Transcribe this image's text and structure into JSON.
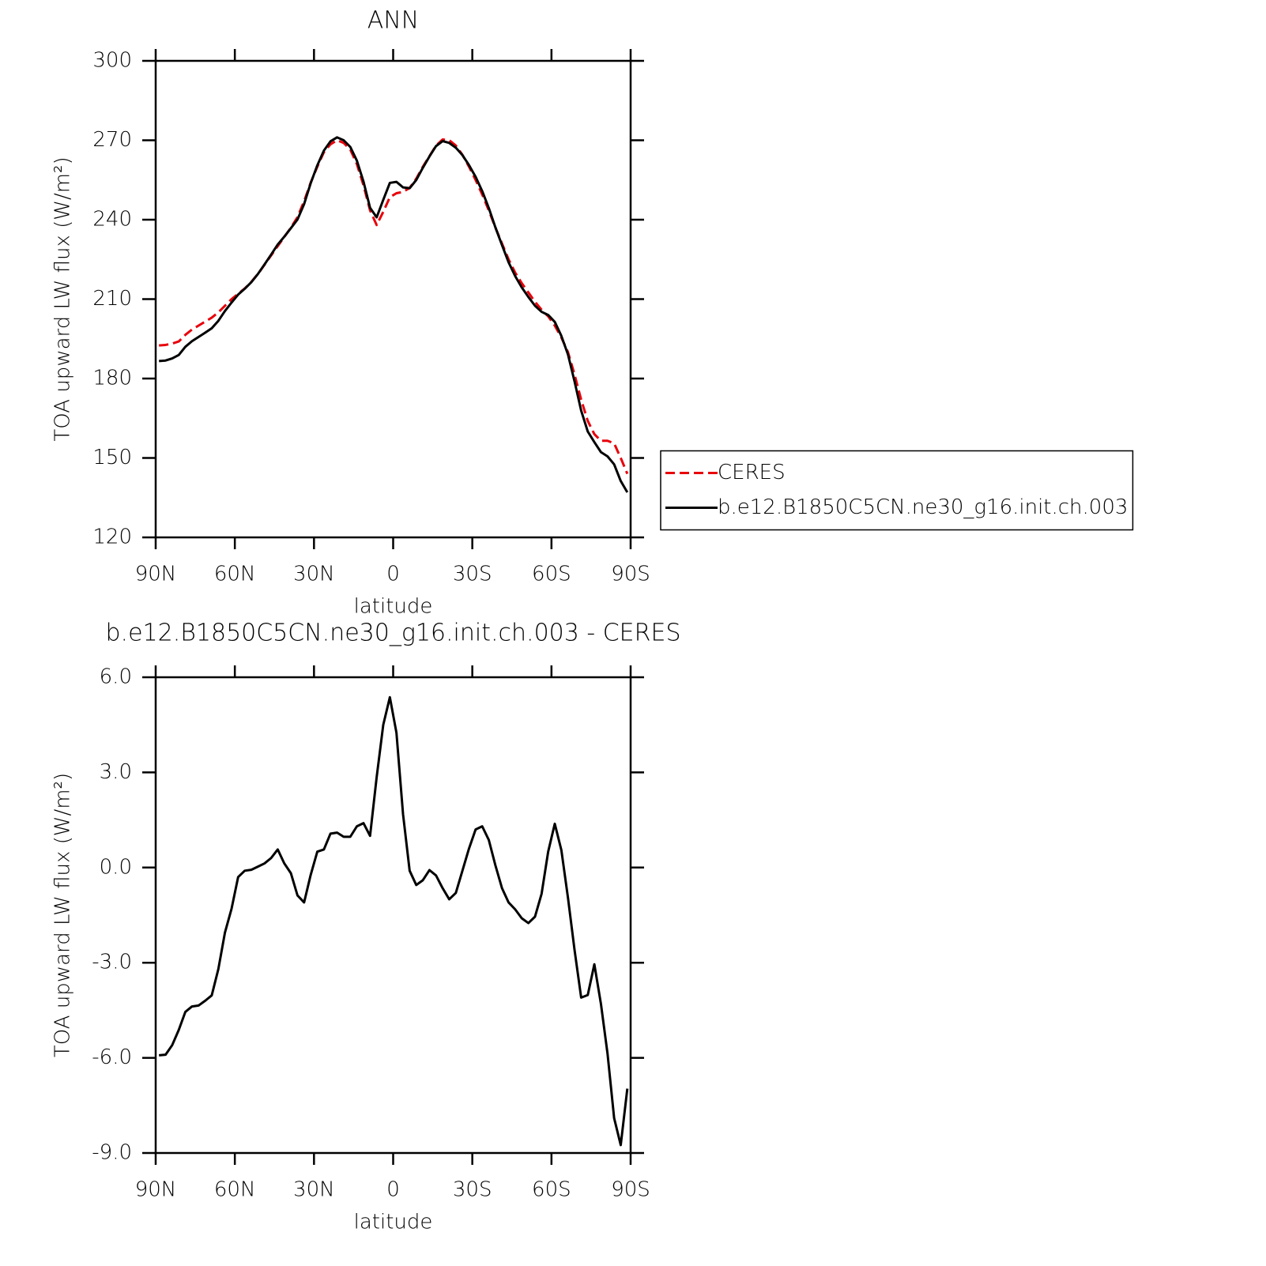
{
  "chart_data": [
    {
      "type": "line",
      "title": "ANN",
      "xlabel": "latitude",
      "ylabel": "TOA upward LW flux (W/m²)",
      "x": [
        88.75,
        86.25,
        83.75,
        81.25,
        78.75,
        76.25,
        73.75,
        71.25,
        68.75,
        66.25,
        63.75,
        61.25,
        58.75,
        56.25,
        53.75,
        51.25,
        48.75,
        46.25,
        43.75,
        41.25,
        38.75,
        36.25,
        33.75,
        31.25,
        28.75,
        26.25,
        23.75,
        21.25,
        18.75,
        16.25,
        13.75,
        11.25,
        8.75,
        6.25,
        3.75,
        1.25,
        -1.25,
        -3.75,
        -6.25,
        -8.75,
        -11.25,
        -13.75,
        -16.25,
        -18.75,
        -21.25,
        -23.75,
        -26.25,
        -28.75,
        -31.25,
        -33.75,
        -36.25,
        -38.75,
        -41.25,
        -43.75,
        -46.25,
        -48.75,
        -51.25,
        -53.75,
        -56.25,
        -58.75,
        -61.25,
        -63.75,
        -66.25,
        -68.75,
        -71.25,
        -73.75,
        -76.25,
        -78.75,
        -81.25,
        -83.75,
        -86.25,
        -88.75
      ],
      "series": [
        {
          "name": "CERES",
          "color": "#e8000b",
          "linestyle": "dashed",
          "values": [
            192.5,
            192.7,
            193.2,
            194,
            196.5,
            198.5,
            200,
            201.5,
            203,
            205,
            207.5,
            210,
            212,
            214,
            216.5,
            219.5,
            223,
            226.5,
            230,
            233.5,
            237,
            241,
            247,
            254,
            260,
            265.5,
            268.5,
            270,
            269,
            266.5,
            261,
            253,
            243.5,
            238,
            243,
            248.5,
            250,
            250.5,
            252,
            255.5,
            260,
            264,
            268,
            270.3,
            270,
            268,
            264.5,
            260,
            255,
            249.5,
            243.5,
            237,
            231,
            225,
            220,
            216,
            212.5,
            209,
            206,
            203.5,
            200,
            195.5,
            190,
            181.5,
            172,
            164,
            159,
            156.5,
            156.5,
            155.5,
            150,
            144
          ]
        },
        {
          "name": "b.e12.B1850C5CN.ne30_g16.init.ch.003",
          "color": "#000000",
          "linestyle": "solid",
          "values": [
            186.6,
            186.8,
            187.6,
            188.9,
            192.0,
            194.1,
            195.7,
            197.3,
            199.0,
            201.8,
            205.5,
            208.7,
            211.7,
            213.9,
            216.4,
            219.5,
            223.1,
            226.8,
            230.6,
            233.6,
            236.8,
            240.1,
            245.9,
            253.8,
            260.5,
            266.1,
            269.6,
            271.1,
            270.0,
            267.5,
            262.3,
            254.4,
            244.5,
            240.9,
            247.5,
            253.9,
            254.3,
            252.2,
            251.9,
            255.0,
            259.6,
            263.9,
            267.8,
            269.7,
            269.0,
            267.2,
            264.4,
            260.6,
            256.2,
            250.8,
            244.4,
            237.1,
            230.4,
            223.9,
            218.7,
            214.4,
            210.8,
            207.5,
            205.2,
            204.0,
            201.4,
            196.1,
            189.1,
            178.9,
            167.9,
            160.0,
            156.0,
            152.2,
            150.6,
            147.6,
            141.3,
            137.0
          ]
        }
      ],
      "xlim": [
        90,
        -90
      ],
      "xticks": [
        {
          "value": 90,
          "label": "90N"
        },
        {
          "value": 60,
          "label": "60N"
        },
        {
          "value": 30,
          "label": "30N"
        },
        0,
        {
          "value": -30,
          "label": "30S"
        },
        {
          "value": -60,
          "label": "60S"
        },
        {
          "value": -90,
          "label": "90S"
        }
      ],
      "ylim": [
        120,
        300
      ],
      "yticks": [
        120,
        150,
        180,
        210,
        240,
        270,
        300
      ],
      "legend": "right"
    },
    {
      "type": "line",
      "title": "b.e12.B1850C5CN.ne30_g16.init.ch.003 - CERES",
      "xlabel": "latitude",
      "ylabel": "TOA upward LW flux (W/m²)",
      "x": [
        88.75,
        86.25,
        83.75,
        81.25,
        78.75,
        76.25,
        73.75,
        71.25,
        68.75,
        66.25,
        63.75,
        61.25,
        58.75,
        56.25,
        53.75,
        51.25,
        48.75,
        46.25,
        43.75,
        41.25,
        38.75,
        36.25,
        33.75,
        31.25,
        28.75,
        26.25,
        23.75,
        21.25,
        18.75,
        16.25,
        13.75,
        11.25,
        8.75,
        6.25,
        3.75,
        1.25,
        -1.25,
        -3.75,
        -6.25,
        -8.75,
        -11.25,
        -13.75,
        -16.25,
        -18.75,
        -21.25,
        -23.75,
        -26.25,
        -28.75,
        -31.25,
        -33.75,
        -36.25,
        -38.75,
        -41.25,
        -43.75,
        -46.25,
        -48.75,
        -51.25,
        -53.75,
        -56.25,
        -58.75,
        -61.25,
        -63.75,
        -66.25,
        -68.75,
        -71.25,
        -73.75,
        -76.25,
        -78.75,
        -81.25,
        -83.75,
        -86.25,
        -88.75
      ],
      "series": [
        {
          "color": "#000000",
          "linestyle": "solid",
          "values": [
            -5.92,
            -5.9,
            -5.6,
            -5.12,
            -4.55,
            -4.38,
            -4.35,
            -4.2,
            -4.03,
            -3.2,
            -2.05,
            -1.3,
            -0.3,
            -0.1,
            -0.07,
            0.03,
            0.13,
            0.3,
            0.57,
            0.13,
            -0.18,
            -0.88,
            -1.1,
            -0.23,
            0.5,
            0.57,
            1.07,
            1.1,
            0.97,
            0.97,
            1.3,
            1.4,
            1.0,
            2.85,
            4.5,
            5.37,
            4.25,
            1.68,
            -0.1,
            -0.55,
            -0.4,
            -0.08,
            -0.25,
            -0.65,
            -1.0,
            -0.8,
            -0.1,
            0.6,
            1.2,
            1.3,
            0.87,
            0.07,
            -0.65,
            -1.1,
            -1.32,
            -1.6,
            -1.75,
            -1.55,
            -0.83,
            0.5,
            1.38,
            0.55,
            -0.95,
            -2.6,
            -4.1,
            -4.02,
            -3.05,
            -4.3,
            -5.87,
            -7.9,
            -8.75,
            -6.97
          ]
        }
      ],
      "xlim": [
        90,
        -90
      ],
      "xticks": [
        {
          "value": 90,
          "label": "90N"
        },
        {
          "value": 60,
          "label": "60N"
        },
        {
          "value": 30,
          "label": "30N"
        },
        0,
        {
          "value": -30,
          "label": "30S"
        },
        {
          "value": -60,
          "label": "60S"
        },
        {
          "value": -90,
          "label": "90S"
        }
      ],
      "ylim": [
        -9,
        6
      ],
      "yticks": [
        {
          "value": -9,
          "label": "-9.0"
        },
        {
          "value": -6,
          "label": "-6.0"
        },
        {
          "value": -3,
          "label": "-3.0"
        },
        {
          "value": 0,
          "label": "0.0"
        },
        {
          "value": 3,
          "label": "3.0"
        },
        {
          "value": 6,
          "label": "6.0"
        }
      ]
    }
  ]
}
